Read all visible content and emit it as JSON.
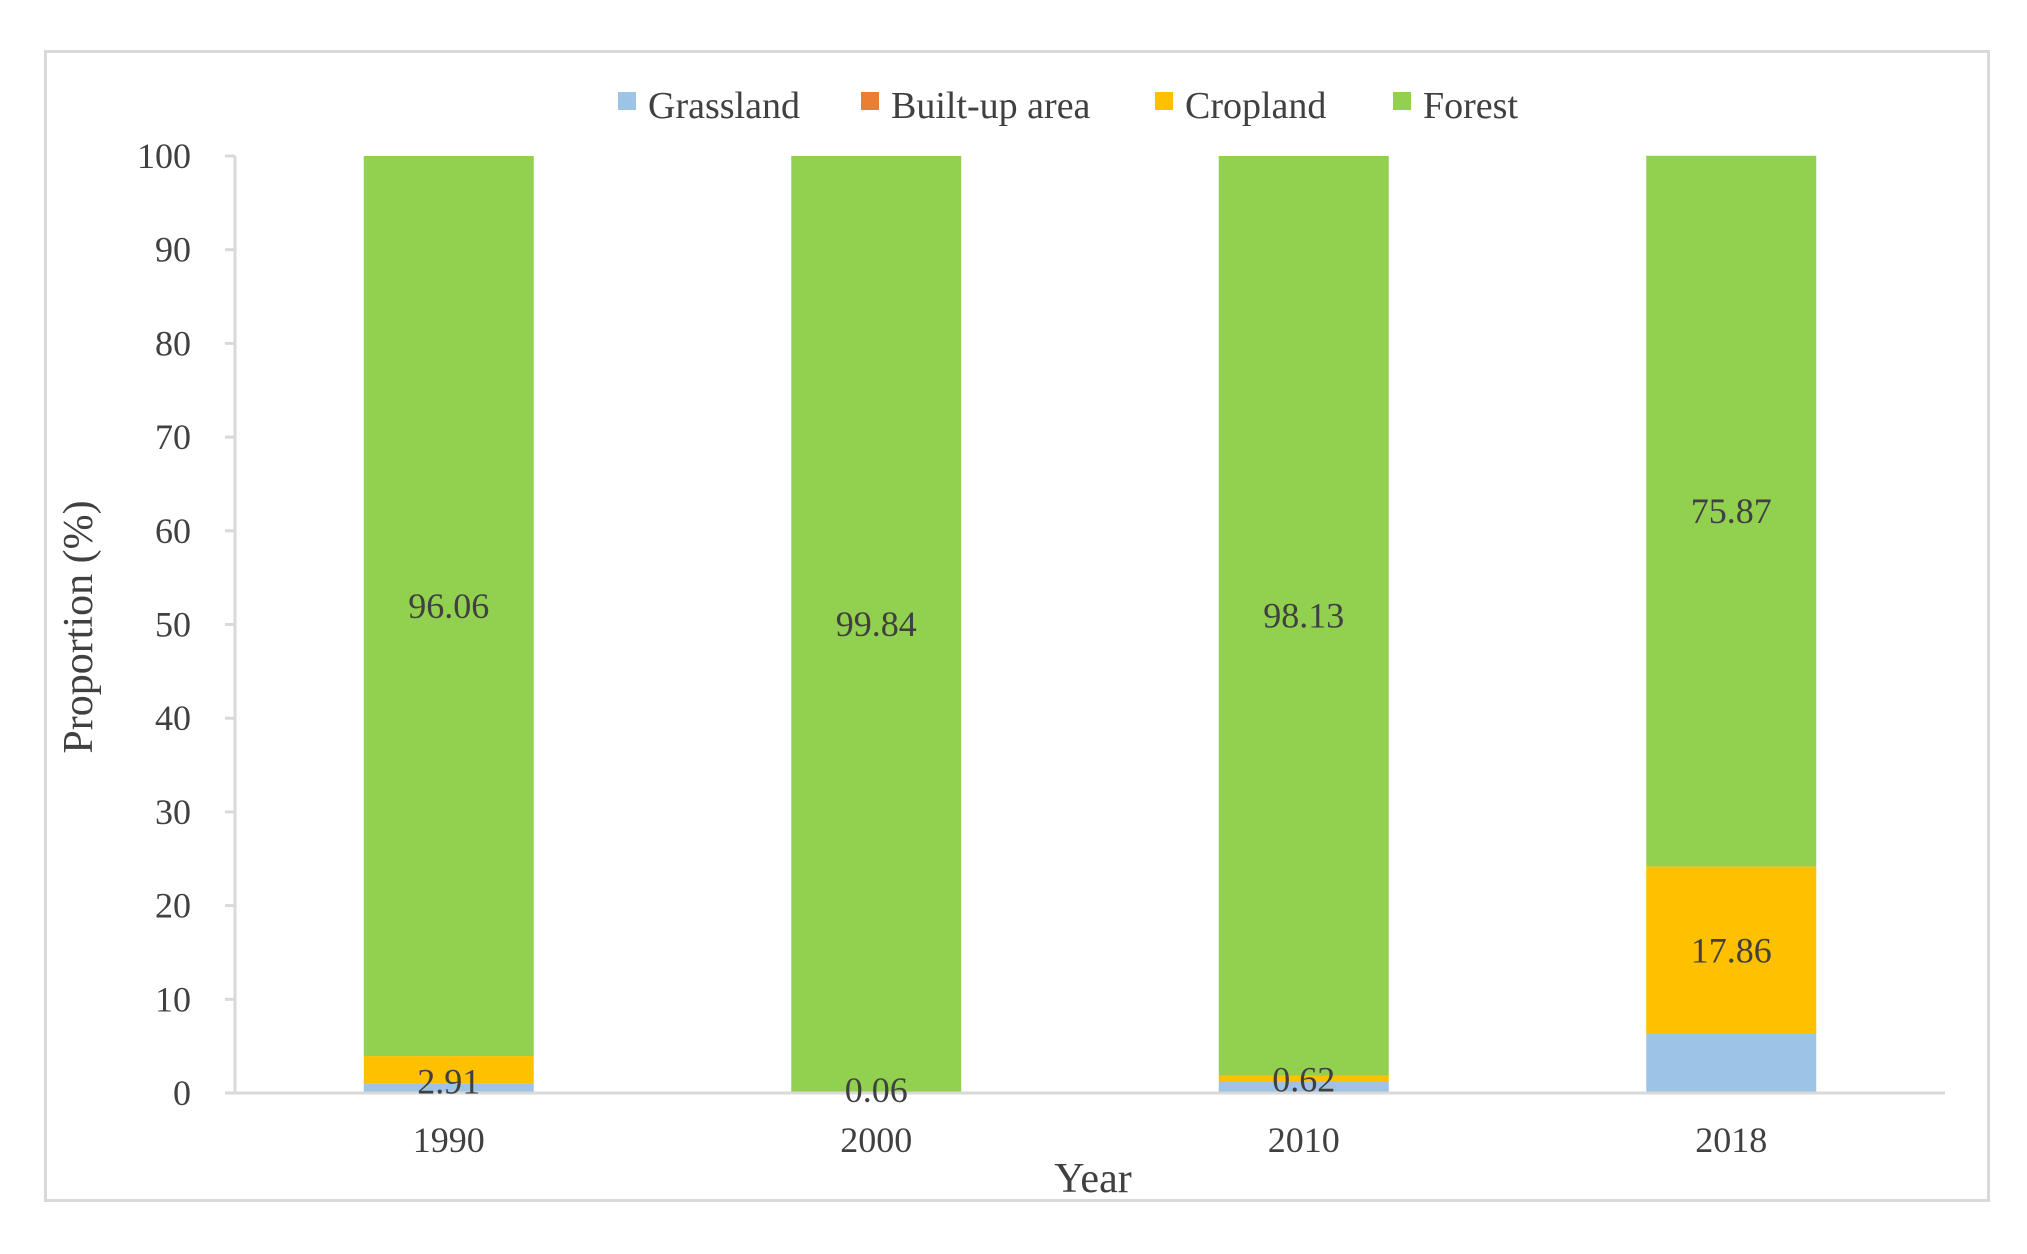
{
  "chart_data": {
    "type": "bar",
    "stacked": true,
    "categories": [
      "1990",
      "2000",
      "2010",
      "2018"
    ],
    "series": [
      {
        "name": "Grassland",
        "values": [
          1.0,
          0.1,
          1.2,
          6.3
        ]
      },
      {
        "name": "Built-up area",
        "values": [
          0.03,
          0.0,
          0.05,
          0.0
        ]
      },
      {
        "name": "Cropland",
        "values": [
          2.91,
          0.06,
          0.62,
          17.86
        ]
      },
      {
        "name": "Forest",
        "values": [
          96.06,
          99.84,
          98.13,
          75.87
        ]
      }
    ],
    "colors": [
      "#9dc3e6",
      "#ed7d31",
      "#ffc000",
      "#92d050"
    ],
    "data_labels": [
      {
        "category_index": 0,
        "series_index": 3,
        "text": "96.06"
      },
      {
        "category_index": 0,
        "series_index": 2,
        "text": "2.91"
      },
      {
        "category_index": 1,
        "series_index": 3,
        "text": "99.84"
      },
      {
        "category_index": 1,
        "series_index": 2,
        "text": "0.06"
      },
      {
        "category_index": 2,
        "series_index": 3,
        "text": "98.13"
      },
      {
        "category_index": 2,
        "series_index": 2,
        "text": "0.62"
      },
      {
        "category_index": 3,
        "series_index": 3,
        "text": "75.87"
      },
      {
        "category_index": 3,
        "series_index": 2,
        "text": "17.86"
      }
    ],
    "title": "",
    "xlabel": "Year",
    "ylabel": "Proportion (%)",
    "ylim": [
      0,
      100
    ],
    "yticks": [
      "0",
      "10",
      "20",
      "30",
      "40",
      "50",
      "60",
      "70",
      "80",
      "90",
      "100"
    ],
    "legend_position": "top-center",
    "grid": false
  }
}
